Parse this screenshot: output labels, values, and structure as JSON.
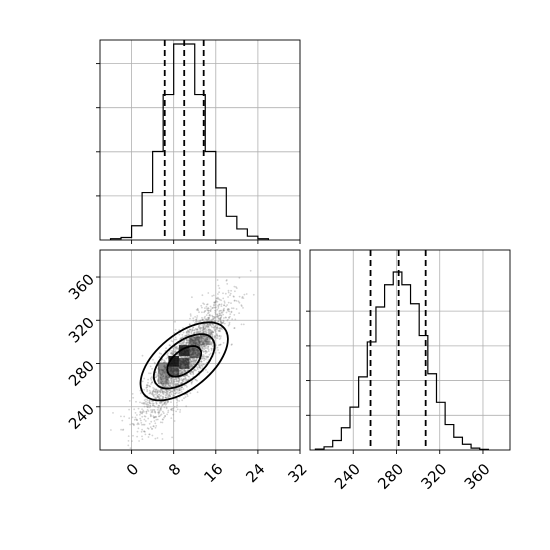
{
  "chart_data": [
    {
      "type": "histogram",
      "panel": "marginal-x",
      "grid": true,
      "xlim": [
        -6,
        32
      ],
      "ytick_labels_shown": false,
      "bins": [
        -4,
        -2,
        0,
        2,
        4,
        6,
        8,
        10,
        12,
        14,
        16,
        18,
        20,
        22,
        24,
        26
      ],
      "counts": [
        4,
        8,
        45,
        150,
        280,
        460,
        620,
        620,
        460,
        280,
        165,
        75,
        35,
        12,
        4
      ],
      "quantiles": [
        6.3,
        10.0,
        13.7
      ]
    },
    {
      "type": "scatter",
      "panel": "joint",
      "grid": true,
      "xlim": [
        -6,
        32
      ],
      "ylim": [
        200,
        385
      ],
      "xticks": [
        "0",
        "8",
        "16",
        "24",
        "32"
      ],
      "yticks": [
        "240",
        "280",
        "320",
        "360"
      ],
      "center": [
        10,
        282
      ],
      "spread": [
        4,
        27
      ],
      "correlation": 0.85,
      "contour_levels": [
        "inner",
        "middle",
        "outer"
      ]
    },
    {
      "type": "histogram",
      "panel": "marginal-y",
      "grid": true,
      "xlim": [
        200,
        385
      ],
      "xticks": [
        "240",
        "280",
        "320",
        "360"
      ],
      "ytick_labels_shown": false,
      "bins": [
        205,
        213,
        221,
        229,
        237,
        245,
        253,
        261,
        269,
        277,
        285,
        293,
        301,
        309,
        317,
        325,
        333,
        341,
        349,
        357,
        365
      ],
      "counts": [
        3,
        10,
        30,
        70,
        135,
        230,
        340,
        450,
        520,
        560,
        520,
        460,
        360,
        240,
        150,
        80,
        40,
        18,
        6,
        2
      ],
      "quantiles": [
        256,
        282,
        307
      ]
    }
  ],
  "colors": {
    "ink": "#000000",
    "grid": "#b0b0b0",
    "points": "#808080"
  }
}
